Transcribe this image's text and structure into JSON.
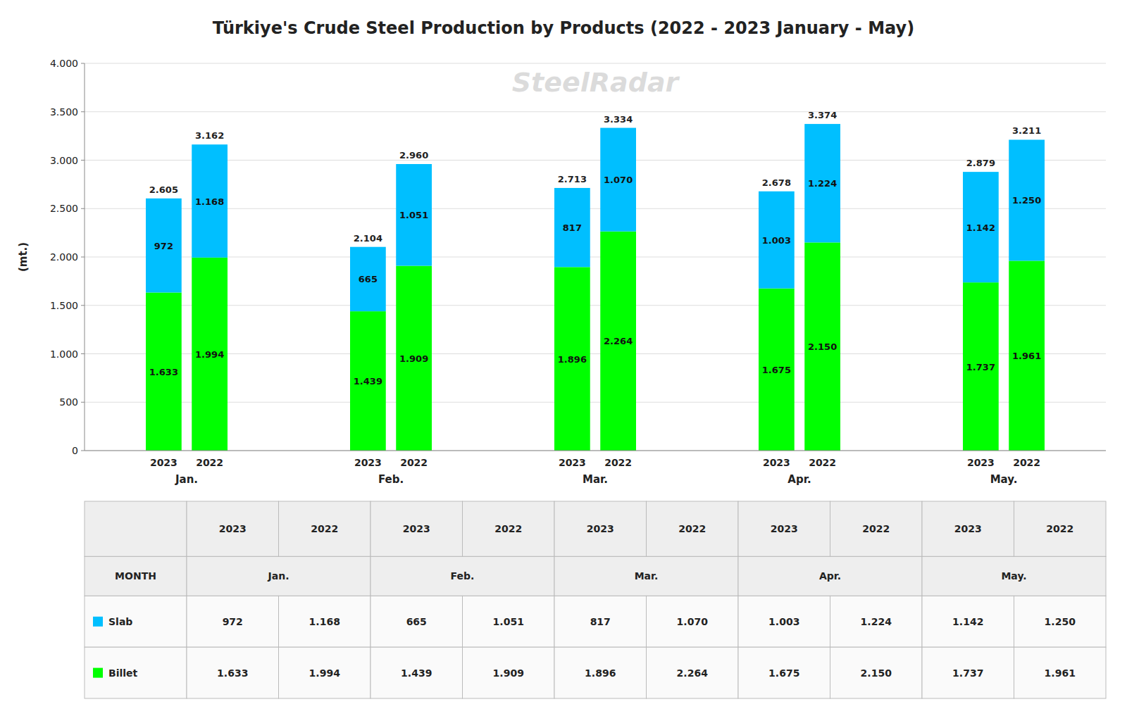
{
  "chart_data": {
    "type": "bar",
    "title": "Türkiye's Crude Steel Production by Products (2022 - 2023 January - May)",
    "y_label": "(mt.)",
    "watermark": "SteelRadar",
    "categories": [
      "2023",
      "2022",
      "2023",
      "2022",
      "2023",
      "2022",
      "2023",
      "2022",
      "2023",
      "2022"
    ],
    "groups": [
      "Jan.",
      "Feb.",
      "Mar.",
      "Apr.",
      "May."
    ],
    "table_header": "MONTH",
    "stacked": true,
    "data_labels": true,
    "grid": true,
    "series": [
      {
        "name": "Slab",
        "color": "#00bfff",
        "values": [
          972,
          1168,
          665,
          1051,
          817,
          1070,
          1003,
          1224,
          1142,
          1250
        ],
        "value_labels": [
          "972",
          "1.168",
          "665",
          "1.051",
          "817",
          "1.070",
          "1.003",
          "1.224",
          "1.142",
          "1.250"
        ]
      },
      {
        "name": "Billet",
        "color": "#00ff00",
        "values": [
          1633,
          1994,
          1439,
          1909,
          1896,
          2264,
          1675,
          2150,
          1737,
          1961
        ],
        "value_labels": [
          "1.633",
          "1.994",
          "1.439",
          "1.909",
          "1.896",
          "2.264",
          "1.675",
          "2.150",
          "1.737",
          "1.961"
        ]
      }
    ],
    "totals": [
      2605,
      3162,
      2104,
      2960,
      2713,
      3334,
      2678,
      3374,
      2879,
      3211
    ],
    "total_labels": [
      "2.605",
      "3.162",
      "2.104",
      "2.960",
      "2.713",
      "3.334",
      "2.678",
      "3.374",
      "2.879",
      "3.211"
    ],
    "ylim": [
      0,
      4000
    ],
    "yticks": [
      0,
      500,
      {
        "value": 1000,
        "label": "1.000"
      },
      {
        "value": 1500,
        "label": "1.500"
      },
      {
        "value": 2000,
        "label": "2.000"
      },
      {
        "value": 2500,
        "label": "2.500"
      },
      {
        "value": 3000,
        "label": "3.000"
      },
      {
        "value": 3500,
        "label": "3.500"
      },
      {
        "value": 4000,
        "label": "4.000"
      }
    ]
  }
}
